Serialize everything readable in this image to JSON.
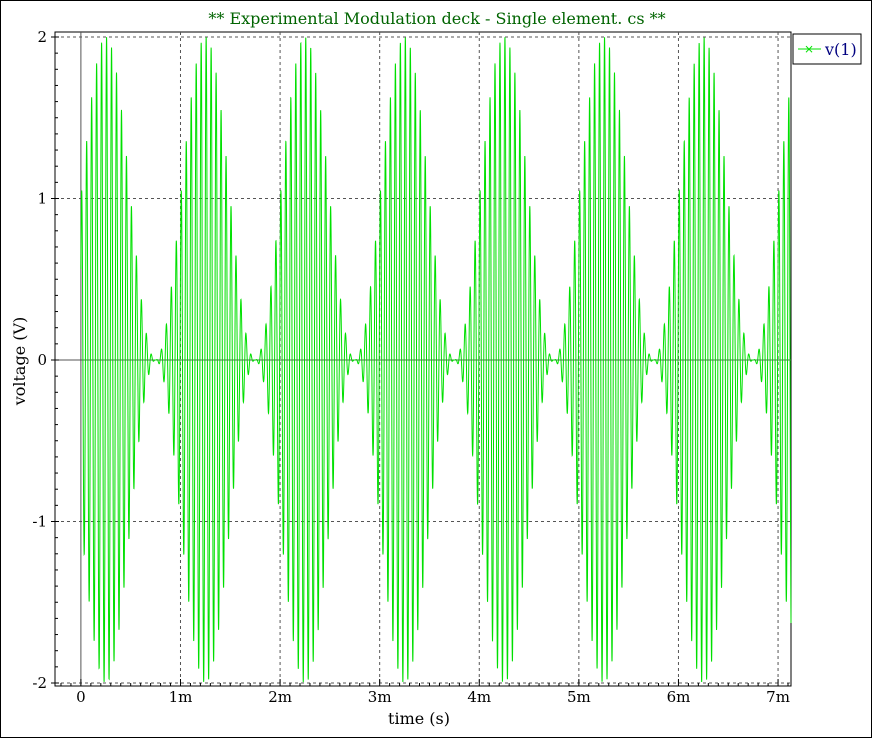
{
  "chart_data": {
    "type": "line",
    "title": "** Experimental Modulation deck - Single element.    cs **",
    "xlabel": "time (s)",
    "ylabel": "voltage (V)",
    "xlim": [
      -0.00026,
      0.00713
    ],
    "ylim": [
      -2.0,
      2.0
    ],
    "grid": true,
    "legend_position": "top-right",
    "x_ticks": [
      {
        "value": 0,
        "label": "0"
      },
      {
        "value": 0.001,
        "label": "1m"
      },
      {
        "value": 0.002,
        "label": "2m"
      },
      {
        "value": 0.003,
        "label": "3m"
      },
      {
        "value": 0.004,
        "label": "4m"
      },
      {
        "value": 0.005,
        "label": "5m"
      },
      {
        "value": 0.006,
        "label": "6m"
      },
      {
        "value": 0.007,
        "label": "7m"
      }
    ],
    "y_ticks": [
      {
        "value": 2,
        "label": "2"
      },
      {
        "value": 1,
        "label": "1"
      },
      {
        "value": 0,
        "label": "0"
      },
      {
        "value": -1,
        "label": "-1"
      },
      {
        "value": -2,
        "label": "-2"
      }
    ],
    "series": [
      {
        "name": "v(1)",
        "color": "#00e000",
        "carrier_frequency_hz": 20000,
        "envelope_frequency_hz": 1000,
        "envelope_peak_time_s": 0.00025,
        "amplitude_peak_v": 2.0,
        "x_start": 0,
        "x_end": 0.00713
      }
    ]
  },
  "colors": {
    "title": "#006400",
    "legend_text": "#000080",
    "grid": "#555555",
    "axis": "#000000"
  }
}
